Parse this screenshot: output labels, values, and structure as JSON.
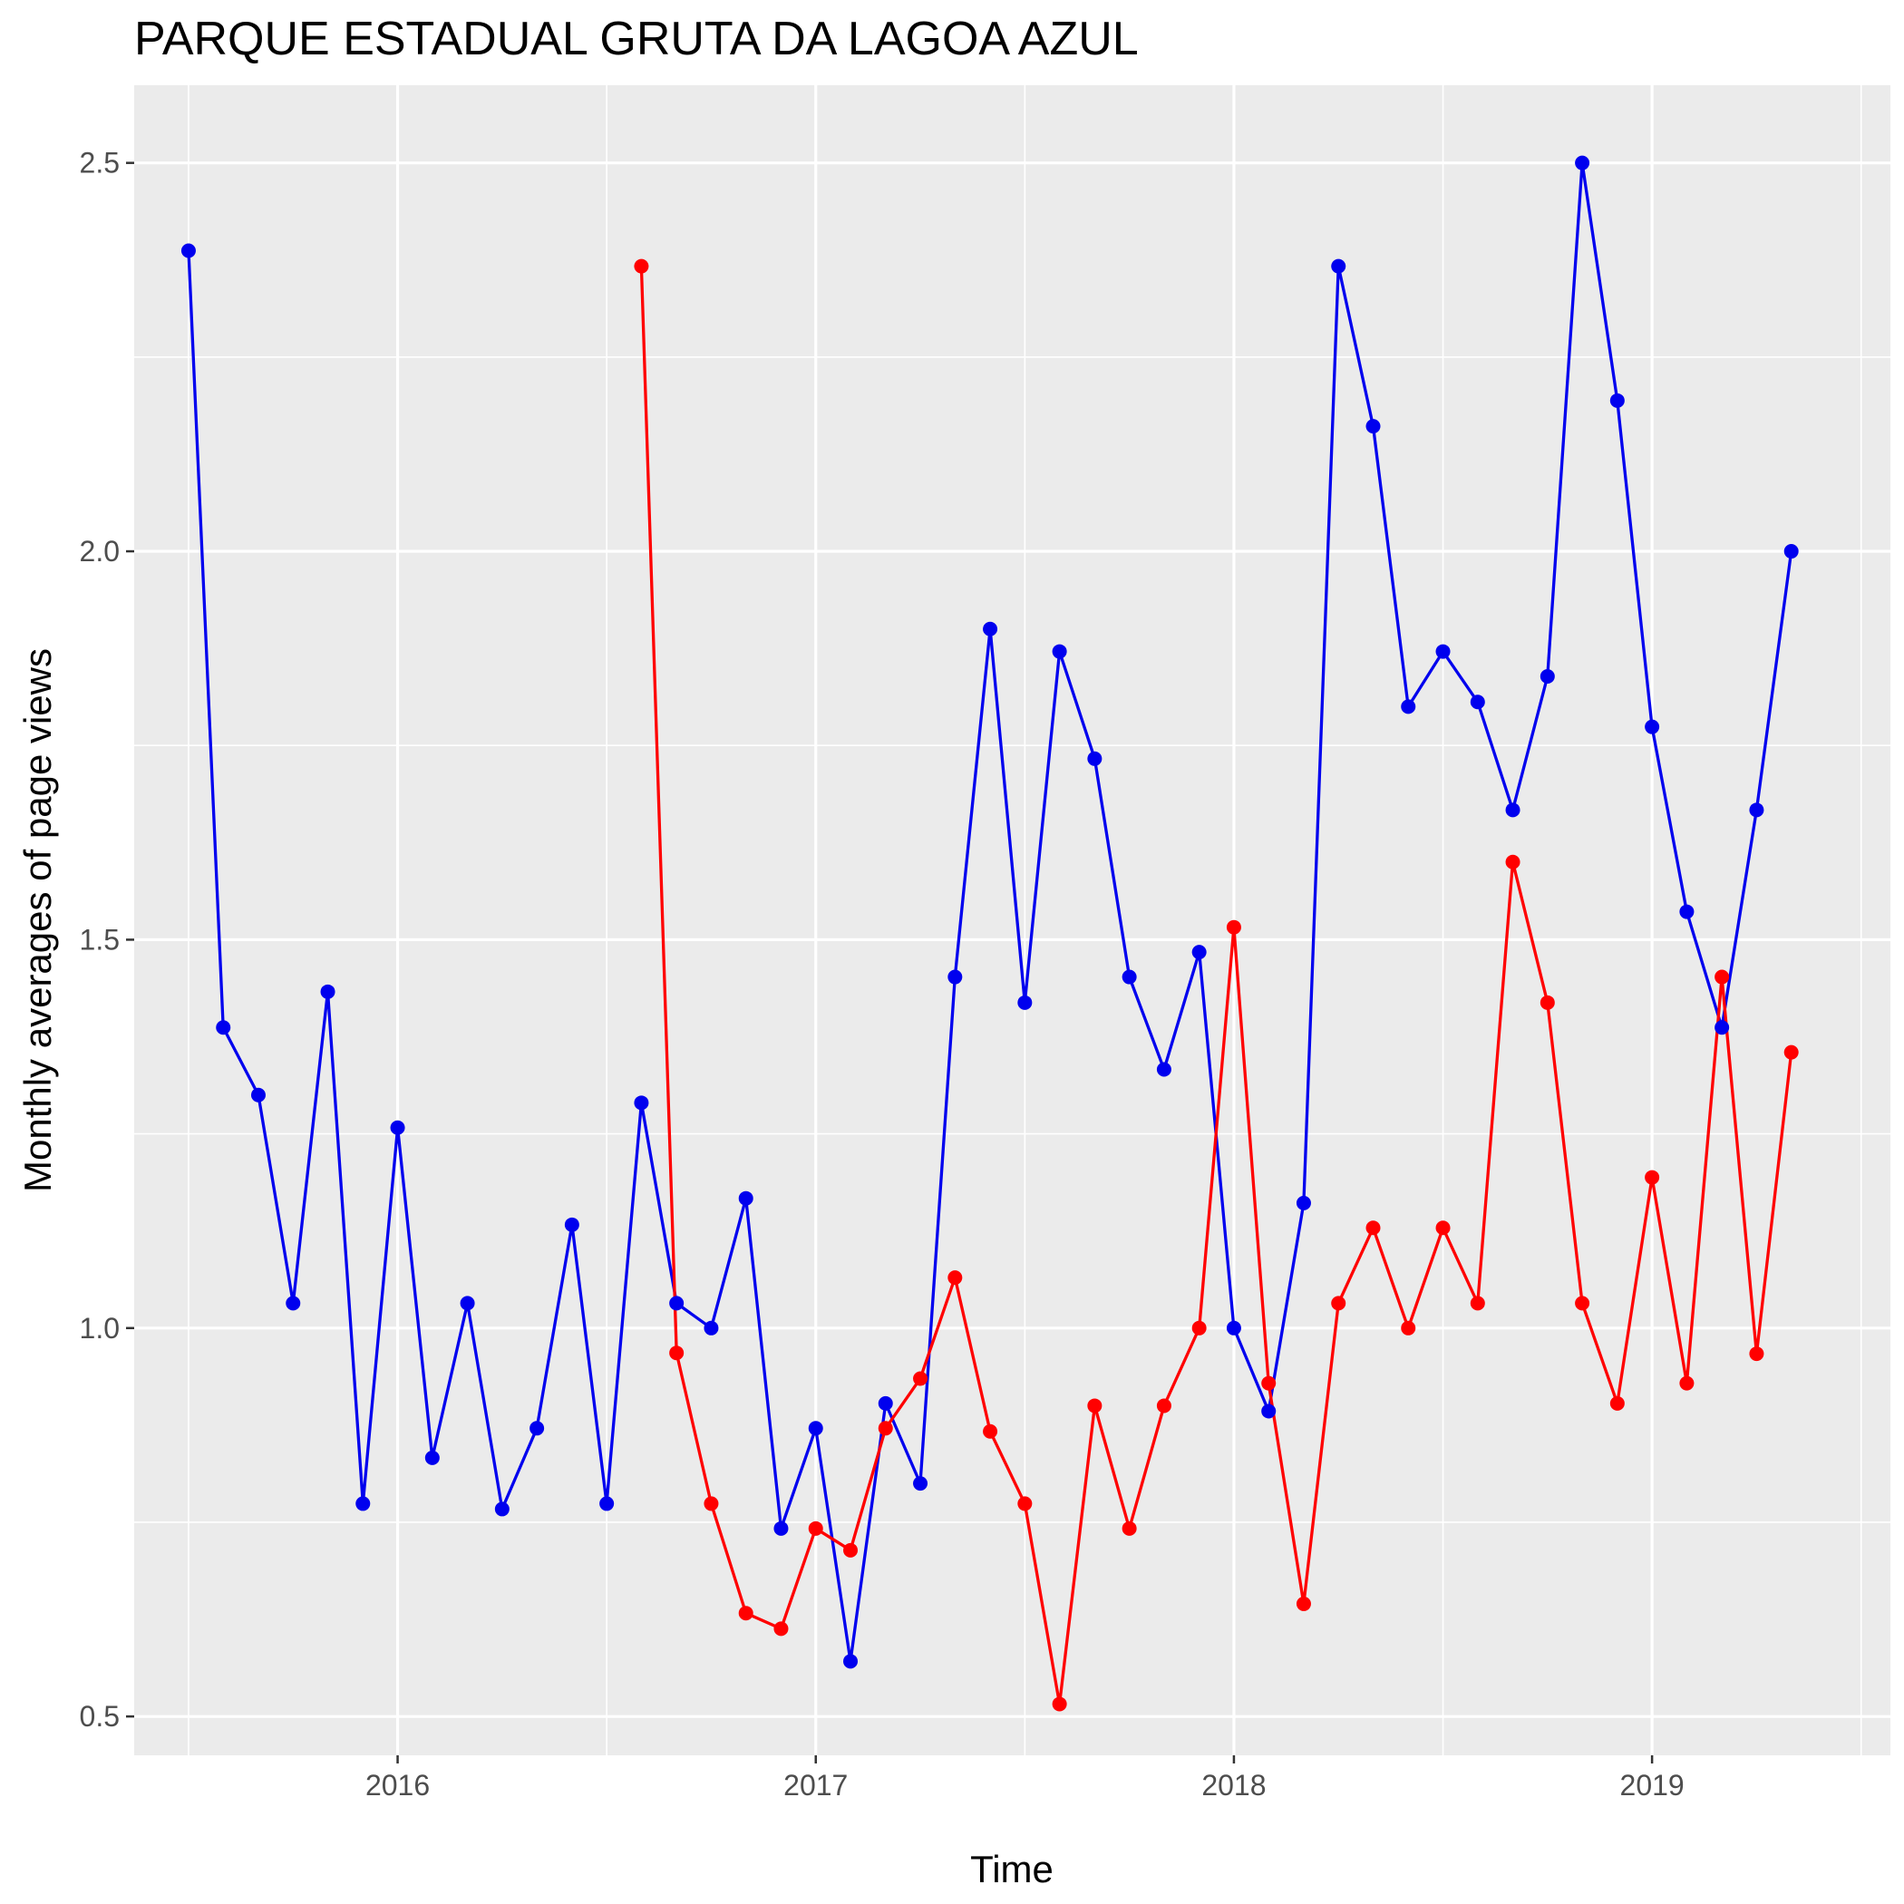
{
  "chart_data": {
    "type": "line",
    "title": "PARQUE ESTADUAL GRUTA DA LAGOA AZUL",
    "xlabel": "Time",
    "ylabel": "Monthly averages of page views",
    "xlim": [
      2015.37,
      2019.57
    ],
    "ylim": [
      0.45,
      2.6
    ],
    "grid": true,
    "legend": "none",
    "x_ticks": [
      {
        "value": 2016,
        "label": "2016"
      },
      {
        "value": 2017,
        "label": "2017"
      },
      {
        "value": 2018,
        "label": "2018"
      },
      {
        "value": 2019,
        "label": "2019"
      }
    ],
    "y_ticks": [
      {
        "value": 0.5,
        "label": "0.5"
      },
      {
        "value": 1.0,
        "label": "1.0"
      },
      {
        "value": 1.5,
        "label": "1.5"
      },
      {
        "value": 2.0,
        "label": "2.0"
      },
      {
        "value": 2.5,
        "label": "2.5"
      }
    ],
    "series": [
      {
        "name": "blue series",
        "color": "#0000ee",
        "x": [
          2015.5,
          2015.583,
          2015.667,
          2015.75,
          2015.833,
          2015.917,
          2016.0,
          2016.083,
          2016.167,
          2016.25,
          2016.333,
          2016.417,
          2016.5,
          2016.583,
          2016.667,
          2016.75,
          2016.833,
          2016.917,
          2017.0,
          2017.083,
          2017.167,
          2017.25,
          2017.333,
          2017.417,
          2017.5,
          2017.583,
          2017.667,
          2017.75,
          2017.833,
          2017.917,
          2018.0,
          2018.083,
          2018.167,
          2018.25,
          2018.333,
          2018.417,
          2018.5,
          2018.583,
          2018.667,
          2018.75,
          2018.833,
          2018.917,
          2019.0,
          2019.083,
          2019.167,
          2019.25,
          2019.333
        ],
        "values": [
          2.387,
          1.387,
          1.3,
          1.032,
          1.433,
          0.774,
          1.258,
          0.833,
          1.032,
          0.767,
          0.871,
          1.133,
          0.774,
          1.29,
          1.032,
          1.0,
          1.167,
          0.742,
          0.871,
          0.571,
          0.903,
          0.8,
          1.452,
          1.9,
          1.419,
          1.871,
          1.733,
          1.452,
          1.333,
          1.484,
          1.0,
          0.893,
          1.161,
          2.367,
          2.161,
          1.8,
          1.871,
          1.806,
          1.667,
          1.839,
          2.5,
          2.194,
          1.774,
          1.536,
          1.387,
          1.667,
          2.0
        ]
      },
      {
        "name": "red series",
        "color": "#ff0000",
        "x": [
          2016.583,
          2016.667,
          2016.75,
          2016.833,
          2016.917,
          2017.0,
          2017.083,
          2017.167,
          2017.25,
          2017.333,
          2017.417,
          2017.5,
          2017.583,
          2017.667,
          2017.75,
          2017.833,
          2017.917,
          2018.0,
          2018.083,
          2018.167,
          2018.25,
          2018.333,
          2018.417,
          2018.5,
          2018.583,
          2018.667,
          2018.75,
          2018.833,
          2018.917,
          2019.0,
          2019.083,
          2019.167,
          2019.25,
          2019.333
        ],
        "values": [
          2.367,
          0.968,
          0.774,
          0.633,
          0.613,
          0.742,
          0.714,
          0.871,
          0.935,
          1.065,
          0.867,
          0.774,
          0.516,
          0.9,
          0.742,
          0.9,
          1.0,
          1.516,
          0.929,
          0.645,
          1.032,
          1.129,
          1.0,
          1.129,
          1.032,
          1.6,
          1.419,
          1.032,
          0.903,
          1.194,
          0.929,
          1.452,
          0.967,
          1.355
        ]
      }
    ]
  }
}
